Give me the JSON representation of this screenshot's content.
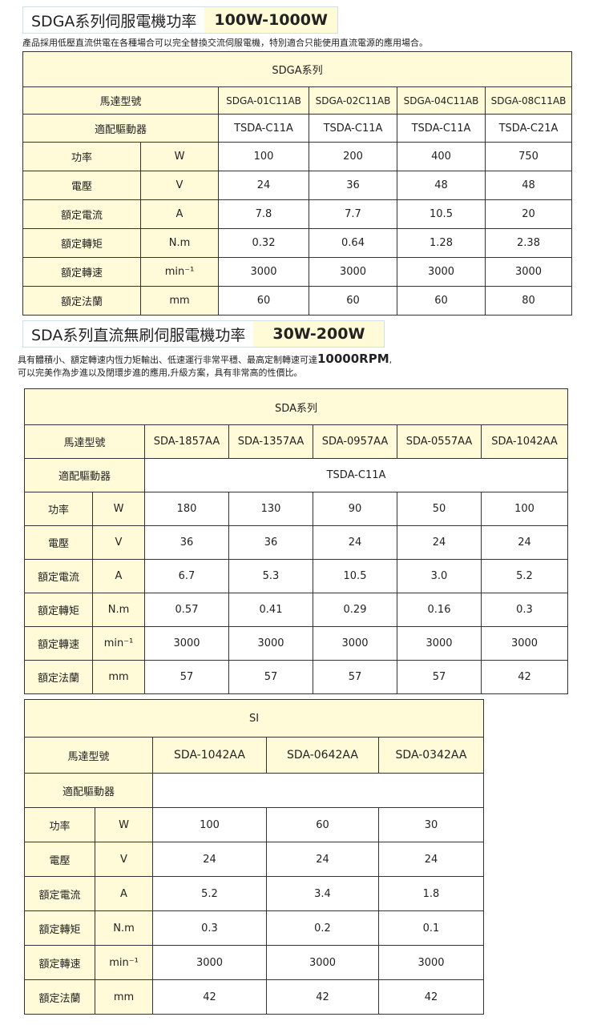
{
  "section1": {
    "title": "SDGA系列伺服電機功率",
    "range": "100W-1000W",
    "desc": "產品採用低壓直流供電在各種場合可以完全替換交流伺服電機，特別適合只能使用直流電源的應用場合。",
    "table": {
      "series": "SDGA系列",
      "model_label": "馬達型號",
      "driver_label": "適配驅動器",
      "models": [
        "SDGA-01C11AB",
        "SDGA-02C11AB",
        "SDGA-04C11AB",
        "SDGA-08C11AB"
      ],
      "drivers": [
        "TSDA-C11A",
        "TSDA-C11A",
        "TSDA-C11A",
        "TSDA-C21A"
      ],
      "rows": [
        {
          "label": "功率",
          "unit": "W",
          "values": [
            "100",
            "200",
            "400",
            "750"
          ]
        },
        {
          "label": "電壓",
          "unit": "V",
          "values": [
            "24",
            "36",
            "48",
            "48"
          ]
        },
        {
          "label": "額定電流",
          "unit": "A",
          "values": [
            "7.8",
            "7.7",
            "10.5",
            "20"
          ]
        },
        {
          "label": "額定轉矩",
          "unit": "N.m",
          "values": [
            "0.32",
            "0.64",
            "1.28",
            "2.38"
          ]
        },
        {
          "label": "額定轉速",
          "unit": "min⁻¹",
          "values": [
            "3000",
            "3000",
            "3000",
            "3000"
          ]
        },
        {
          "label": "額定法蘭",
          "unit": "mm",
          "values": [
            "60",
            "60",
            "60",
            "80"
          ]
        }
      ]
    }
  },
  "section2": {
    "title": "SDA系列直流無刷伺服電機功率",
    "range": "30W-200W",
    "desc_line1": "具有體積小、額定轉速内恆力矩輸出、低速運行非常平穩、最高定制轉速可達",
    "desc_rpm": "10000RPM",
    "desc_line1_end": ",",
    "desc_line2": "可以完美作為步進以及閉環步進的應用,升級方案，具有非常高的性價比。",
    "table": {
      "series": "SDA系列",
      "model_label": "馬達型號",
      "driver_label": "適配驅動器",
      "models": [
        "SDA-1857AA",
        "SDA-1357AA",
        "SDA-0957AA",
        "SDA-0557AA",
        "SDA-1042AA"
      ],
      "driver_all": "TSDA-C11A",
      "rows": [
        {
          "label": "功率",
          "unit": "W",
          "values": [
            "180",
            "130",
            "90",
            "50",
            "100"
          ]
        },
        {
          "label": "電壓",
          "unit": "V",
          "values": [
            "36",
            "36",
            "24",
            "24",
            "24"
          ]
        },
        {
          "label": "額定電流",
          "unit": "A",
          "values": [
            "6.7",
            "5.3",
            "10.5",
            "3.0",
            "5.2"
          ]
        },
        {
          "label": "額定轉矩",
          "unit": "N.m",
          "values": [
            "0.57",
            "0.41",
            "0.29",
            "0.16",
            "0.3"
          ]
        },
        {
          "label": "額定轉速",
          "unit": "min⁻¹",
          "values": [
            "3000",
            "3000",
            "3000",
            "3000",
            "3000"
          ]
        },
        {
          "label": "額定法蘭",
          "unit": "mm",
          "values": [
            "57",
            "57",
            "57",
            "57",
            "42"
          ]
        }
      ]
    }
  },
  "section3": {
    "table": {
      "series": "SI",
      "model_label": "馬達型號",
      "driver_label": "適配驅動器",
      "models": [
        "SDA-1042AA",
        "SDA-0642AA",
        "SDA-0342AA"
      ],
      "driver_all": "",
      "rows": [
        {
          "label": "功率",
          "unit": "W",
          "values": [
            "100",
            "60",
            "30"
          ]
        },
        {
          "label": "電壓",
          "unit": "V",
          "values": [
            "24",
            "24",
            "24"
          ]
        },
        {
          "label": "額定電流",
          "unit": "A",
          "values": [
            "5.2",
            "3.4",
            "1.8"
          ]
        },
        {
          "label": "額定轉矩",
          "unit": "N.m",
          "values": [
            "0.3",
            "0.2",
            "0.1"
          ]
        },
        {
          "label": "額定轉速",
          "unit": "min⁻¹",
          "values": [
            "3000",
            "3000",
            "3000"
          ]
        },
        {
          "label": "額定法蘭",
          "unit": "mm",
          "values": [
            "42",
            "42",
            "42"
          ]
        }
      ]
    }
  }
}
